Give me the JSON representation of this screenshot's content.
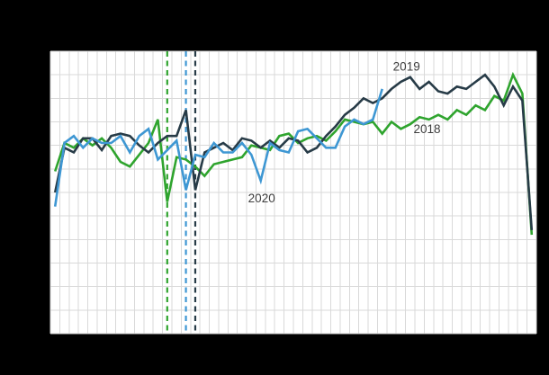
{
  "figure": {
    "background_color": "#000000",
    "plot_background_color": "#ffffff",
    "grid_color": "#d9d9d9",
    "label_color": "#3d3d3d"
  },
  "chart_data": {
    "type": "line",
    "x_unit": "week",
    "x_axis": {
      "range": [
        1,
        52
      ],
      "gridlines": "weekly",
      "tick_labels_visible": false
    },
    "y_axis": {
      "range": [
        0,
        120
      ],
      "gridline_step": 10,
      "tick_labels_visible": false
    },
    "grid": "on",
    "legend": "none",
    "series": [
      {
        "name": "2018",
        "color": "#2fa42e",
        "values": [
          69,
          81,
          79,
          83,
          80,
          83,
          79,
          73,
          71,
          76,
          81,
          91,
          56,
          75,
          74,
          71,
          67,
          72,
          73,
          74,
          75,
          80,
          79,
          78,
          84,
          85,
          81,
          83,
          84,
          82,
          86,
          91,
          90,
          89,
          90,
          85,
          90,
          87,
          89,
          92,
          91,
          93,
          91,
          95,
          93,
          97,
          95,
          101,
          99,
          110,
          102,
          42
        ]
      },
      {
        "name": "2019",
        "color": "#273b47",
        "values": [
          60,
          79,
          77,
          83,
          83,
          78,
          84,
          85,
          84,
          80,
          77,
          81,
          84,
          84,
          95,
          61,
          77,
          79,
          81,
          78,
          83,
          82,
          79,
          82,
          79,
          83,
          82,
          77,
          79,
          84,
          88,
          93,
          96,
          100,
          98,
          100,
          104,
          107,
          109,
          104,
          107,
          103,
          102,
          105,
          104,
          107,
          110,
          105,
          97,
          105,
          99,
          44
        ]
      },
      {
        "name": "2020",
        "color": "#3e97d3",
        "values": [
          54,
          81,
          84,
          79,
          83,
          81,
          81,
          84,
          77,
          84,
          87,
          74,
          78,
          82,
          61,
          76,
          75,
          81,
          77,
          77,
          81,
          76,
          65,
          81,
          78,
          77,
          86,
          87,
          83,
          79,
          79,
          88,
          91,
          89,
          91,
          104
        ]
      }
    ],
    "vertical_markers": [
      {
        "series": "2018",
        "week": 13,
        "color": "#2fa42e",
        "style": "dashed"
      },
      {
        "series": "2020",
        "week": 15,
        "color": "#3e97d3",
        "style": "dashed"
      },
      {
        "series": "2019",
        "week": 16,
        "color": "#273b47",
        "style": "dashed"
      }
    ],
    "series_labels": [
      {
        "text": "2019",
        "week": 38.6,
        "value": 113.5
      },
      {
        "text": "2018",
        "week": 40.8,
        "value": 87
      },
      {
        "text": "2020",
        "week": 23.1,
        "value": 57.5
      }
    ]
  }
}
